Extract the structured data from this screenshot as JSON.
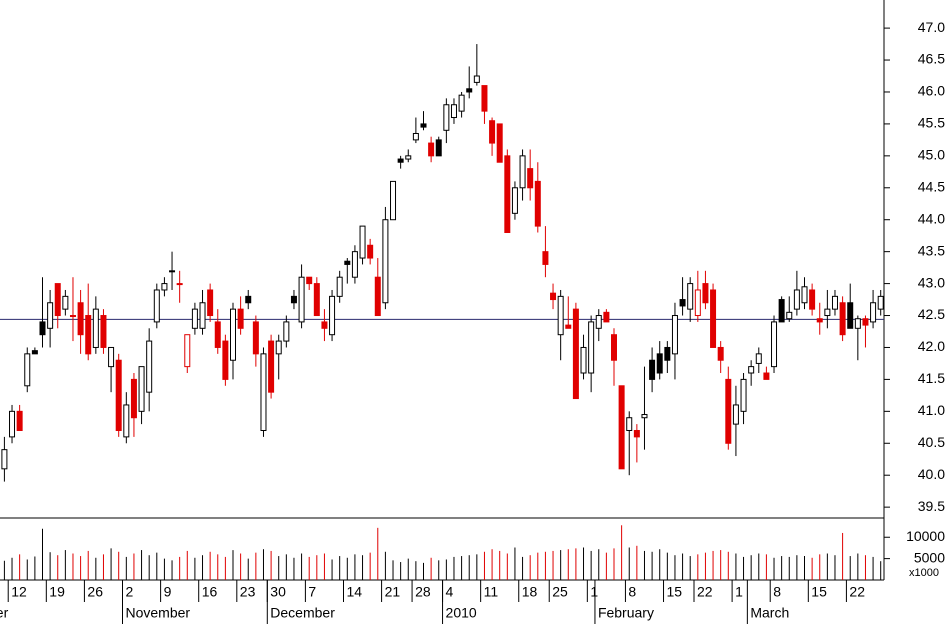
{
  "chart_data": {
    "type": "candlestick",
    "ohlc": [
      [
        40.1,
        40.6,
        39.9,
        40.4
      ],
      [
        40.6,
        41.1,
        40.5,
        41.0
      ],
      [
        41.0,
        41.1,
        40.7,
        40.7
      ],
      [
        41.4,
        42.0,
        41.3,
        41.9
      ],
      [
        41.95,
        42.0,
        41.9,
        41.9
      ],
      [
        42.4,
        43.1,
        42.0,
        42.2
      ],
      [
        42.3,
        42.9,
        42.0,
        42.7
      ],
      [
        43.0,
        43.0,
        42.3,
        42.5
      ],
      [
        42.6,
        42.9,
        42.5,
        42.8
      ],
      [
        42.5,
        43.1,
        42.1,
        42.5
      ],
      [
        42.7,
        42.9,
        41.9,
        42.2
      ],
      [
        42.5,
        43.0,
        41.8,
        41.9
      ],
      [
        42.0,
        42.8,
        41.9,
        42.6
      ],
      [
        42.5,
        42.6,
        41.9,
        42.0
      ],
      [
        41.7,
        42.0,
        41.3,
        42.0
      ],
      [
        41.8,
        41.9,
        40.6,
        40.7
      ],
      [
        40.6,
        41.3,
        40.5,
        41.1
      ],
      [
        41.5,
        41.6,
        40.6,
        40.9
      ],
      [
        41.0,
        41.7,
        40.8,
        41.7
      ],
      [
        41.3,
        42.3,
        41.0,
        42.1
      ],
      [
        42.4,
        43.0,
        42.3,
        42.9
      ],
      [
        42.9,
        43.1,
        42.8,
        43.0
      ],
      [
        43.2,
        43.5,
        42.9,
        43.2
      ],
      [
        43.0,
        43.2,
        42.7,
        43.0
      ],
      [
        41.7,
        42.2,
        41.6,
        42.2
      ],
      [
        42.3,
        42.7,
        42.2,
        42.6
      ],
      [
        42.3,
        42.9,
        42.2,
        42.7
      ],
      [
        42.9,
        43.0,
        42.4,
        42.5
      ],
      [
        42.4,
        42.6,
        41.9,
        42.0
      ],
      [
        42.1,
        42.2,
        41.4,
        41.5
      ],
      [
        41.8,
        42.7,
        41.5,
        42.6
      ],
      [
        42.6,
        42.8,
        42.2,
        42.3
      ],
      [
        42.8,
        42.9,
        42.6,
        42.7
      ],
      [
        42.4,
        42.5,
        41.7,
        41.9
      ],
      [
        40.7,
        42.0,
        40.6,
        41.9
      ],
      [
        42.1,
        42.2,
        41.2,
        41.3
      ],
      [
        41.9,
        42.2,
        41.5,
        42.1
      ],
      [
        42.1,
        42.5,
        42.0,
        42.4
      ],
      [
        42.8,
        42.9,
        42.6,
        42.7
      ],
      [
        42.4,
        43.3,
        42.3,
        43.1
      ],
      [
        43.1,
        43.1,
        42.9,
        43.0
      ],
      [
        43.0,
        43.1,
        42.5,
        42.5
      ],
      [
        42.4,
        42.6,
        42.1,
        42.3
      ],
      [
        42.2,
        42.9,
        42.1,
        42.8
      ],
      [
        42.8,
        43.2,
        42.7,
        43.1
      ],
      [
        43.35,
        43.4,
        43.0,
        43.3
      ],
      [
        43.1,
        43.6,
        43.0,
        43.5
      ],
      [
        43.4,
        43.9,
        43.3,
        43.9
      ],
      [
        43.6,
        43.7,
        43.3,
        43.4
      ],
      [
        43.1,
        43.4,
        42.5,
        42.5
      ],
      [
        42.7,
        44.2,
        42.6,
        44.0
      ],
      [
        44.0,
        44.6,
        44.0,
        44.6
      ],
      [
        44.95,
        45.0,
        44.8,
        44.9
      ],
      [
        44.95,
        45.1,
        44.9,
        45.0
      ],
      [
        45.25,
        45.6,
        45.2,
        45.35
      ],
      [
        45.5,
        45.7,
        45.4,
        45.45
      ],
      [
        45.2,
        45.3,
        44.9,
        45.0
      ],
      [
        45.25,
        45.3,
        45.0,
        45.0
      ],
      [
        45.4,
        45.9,
        45.2,
        45.8
      ],
      [
        45.6,
        45.9,
        45.5,
        45.8
      ],
      [
        45.7,
        46.0,
        45.6,
        45.95
      ],
      [
        46.05,
        46.4,
        45.9,
        46.0
      ],
      [
        46.15,
        46.75,
        46.1,
        46.25
      ],
      [
        46.1,
        46.1,
        45.5,
        45.7
      ],
      [
        45.55,
        45.6,
        45.0,
        45.2
      ],
      [
        45.5,
        45.5,
        44.9,
        44.9
      ],
      [
        45.0,
        45.1,
        43.8,
        43.8
      ],
      [
        44.1,
        44.6,
        44.0,
        44.5
      ],
      [
        44.5,
        45.1,
        44.3,
        45.0
      ],
      [
        44.8,
        45.1,
        44.3,
        44.5
      ],
      [
        44.6,
        44.9,
        43.8,
        43.9
      ],
      [
        43.5,
        43.9,
        43.1,
        43.3
      ],
      [
        42.85,
        43.0,
        42.6,
        42.75
      ],
      [
        42.2,
        42.9,
        41.8,
        42.8
      ],
      [
        42.35,
        42.8,
        42.3,
        42.3
      ],
      [
        42.6,
        42.7,
        41.2,
        41.2
      ],
      [
        41.6,
        42.2,
        41.5,
        42.0
      ],
      [
        41.6,
        42.5,
        41.3,
        42.4
      ],
      [
        42.3,
        42.6,
        42.1,
        42.5
      ],
      [
        42.55,
        42.6,
        42.4,
        42.4
      ],
      [
        42.2,
        42.3,
        41.4,
        41.8
      ],
      [
        41.4,
        41.4,
        40.1,
        40.1
      ],
      [
        40.7,
        41.0,
        40.0,
        40.9
      ],
      [
        40.7,
        40.8,
        40.2,
        40.6
      ],
      [
        40.9,
        41.7,
        40.4,
        40.95
      ],
      [
        41.8,
        42.0,
        41.3,
        41.5
      ],
      [
        41.9,
        42.1,
        41.5,
        41.6
      ],
      [
        42.0,
        42.1,
        41.6,
        41.8
      ],
      [
        41.9,
        42.7,
        41.5,
        42.5
      ],
      [
        42.75,
        43.1,
        42.5,
        42.65
      ],
      [
        42.6,
        43.1,
        42.4,
        43.0
      ],
      [
        42.5,
        43.2,
        42.4,
        42.9
      ],
      [
        43.0,
        43.2,
        42.6,
        42.7
      ],
      [
        42.9,
        43.0,
        42.0,
        42.0
      ],
      [
        42.0,
        42.1,
        41.6,
        41.8
      ],
      [
        41.5,
        41.7,
        40.4,
        40.5
      ],
      [
        40.8,
        41.4,
        40.3,
        41.1
      ],
      [
        41.0,
        41.6,
        40.8,
        41.5
      ],
      [
        41.6,
        41.8,
        41.4,
        41.7
      ],
      [
        41.75,
        42.0,
        41.6,
        41.9
      ],
      [
        41.6,
        41.7,
        41.5,
        41.5
      ],
      [
        41.7,
        42.5,
        41.6,
        42.4
      ],
      [
        42.75,
        42.8,
        42.4,
        42.4
      ],
      [
        42.45,
        42.8,
        42.4,
        42.55
      ],
      [
        42.6,
        43.2,
        42.5,
        42.9
      ],
      [
        42.7,
        43.1,
        42.6,
        42.95
      ],
      [
        42.9,
        43.0,
        42.5,
        42.6
      ],
      [
        42.45,
        42.7,
        42.2,
        42.4
      ],
      [
        42.5,
        42.9,
        42.3,
        42.6
      ],
      [
        42.6,
        42.9,
        42.5,
        42.8
      ],
      [
        42.7,
        42.8,
        42.1,
        42.2
      ],
      [
        42.7,
        43.0,
        42.3,
        42.3
      ],
      [
        42.3,
        42.5,
        41.8,
        42.45
      ],
      [
        42.45,
        42.5,
        42.0,
        42.35
      ],
      [
        42.4,
        42.9,
        42.3,
        42.7
      ],
      [
        42.6,
        42.9,
        42.5,
        42.8
      ]
    ],
    "categories": [
      null,
      "12",
      null,
      null,
      null,
      null,
      "19",
      null,
      null,
      null,
      null,
      "26",
      null,
      null,
      null,
      null,
      "2",
      null,
      null,
      null,
      null,
      "9",
      null,
      null,
      null,
      null,
      "16",
      null,
      null,
      null,
      null,
      "23",
      null,
      null,
      null,
      "30",
      null,
      null,
      null,
      null,
      "7",
      null,
      null,
      null,
      null,
      "14",
      null,
      null,
      null,
      null,
      "21",
      null,
      null,
      null,
      "28",
      null,
      null,
      null,
      "4",
      null,
      null,
      null,
      null,
      "11",
      null,
      null,
      null,
      null,
      "18",
      null,
      null,
      null,
      "25",
      null,
      null,
      null,
      null,
      "1",
      null,
      null,
      null,
      null,
      "8",
      null,
      null,
      null,
      null,
      "15",
      null,
      null,
      null,
      "22",
      null,
      null,
      null,
      null,
      "1",
      null,
      null,
      null,
      null,
      "8",
      null,
      null,
      null,
      null,
      "15",
      null,
      null,
      null,
      null,
      "22",
      null,
      null,
      null,
      null
    ],
    "month_categories": [
      "ber",
      null,
      null,
      null,
      null,
      null,
      null,
      null,
      null,
      null,
      null,
      null,
      null,
      null,
      null,
      null,
      "November",
      null,
      null,
      null,
      null,
      null,
      null,
      null,
      null,
      null,
      null,
      null,
      null,
      null,
      null,
      null,
      null,
      null,
      null,
      "December",
      null,
      null,
      null,
      null,
      null,
      null,
      null,
      null,
      null,
      null,
      null,
      null,
      null,
      null,
      null,
      null,
      null,
      null,
      null,
      null,
      null,
      null,
      "2010",
      null,
      null,
      null,
      null,
      null,
      null,
      null,
      null,
      null,
      null,
      null,
      null,
      null,
      null,
      null,
      null,
      null,
      null,
      null,
      "February",
      null,
      null,
      null,
      null,
      null,
      null,
      null,
      null,
      null,
      null,
      null,
      null,
      null,
      null,
      null,
      null,
      null,
      null,
      null,
      "March",
      null,
      null,
      null,
      null,
      null,
      null,
      null,
      null,
      null,
      null,
      null,
      null,
      null,
      null,
      null,
      null,
      null,
      null,
      null
    ],
    "ylim": [
      39.33,
      47.44
    ],
    "yticks": [
      39.5,
      {
        "value": 40,
        "label": "40.0"
      },
      40.5,
      {
        "value": 41,
        "label": "41.0"
      },
      41.5,
      {
        "value": 42,
        "label": "42.0"
      },
      42.5,
      {
        "value": 43,
        "label": "43.0"
      },
      43.5,
      {
        "value": 44,
        "label": "44.0"
      },
      44.5,
      {
        "value": 45,
        "label": "45.0"
      },
      45.5,
      {
        "value": 46,
        "label": "46.0"
      },
      46.5,
      {
        "value": 47,
        "label": "47.0"
      }
    ],
    "reference_line": 42.44,
    "up_color": "#000000",
    "down_color": "#e00000",
    "volume": {
      "values": [
        4500,
        5200,
        6000,
        4800,
        5500,
        12000,
        6500,
        5800,
        7000,
        6200,
        5600,
        6800,
        5200,
        6000,
        7400,
        6600,
        5400,
        6200,
        7000,
        5800,
        6400,
        5000,
        4600,
        5400,
        6800,
        5200,
        5800,
        6600,
        6000,
        5400,
        7000,
        6200,
        5000,
        6400,
        7200,
        6800,
        5600,
        6000,
        5200,
        6200,
        5400,
        5800,
        6200,
        4800,
        5600,
        5200,
        6000,
        5800,
        6400,
        12200,
        6600,
        4600,
        4200,
        5000,
        4400,
        4000,
        5200,
        4600,
        4800,
        5400,
        5600,
        5800,
        6000,
        6600,
        7200,
        6800,
        6200,
        7600,
        5400,
        5800,
        6400,
        6600,
        6800,
        7000,
        7200,
        7400,
        7600,
        6800,
        7200,
        6400,
        7400,
        12800,
        7600,
        8000,
        6800,
        6600,
        7200,
        6400,
        5800,
        6200,
        5600,
        6000,
        6400,
        6800,
        7000,
        6600,
        6200,
        5400,
        5800,
        6200,
        6000,
        5200,
        5600,
        5400,
        5800,
        5600,
        5200,
        6000,
        6200,
        5800,
        11000,
        5600,
        6200,
        5800,
        5400,
        4400
      ],
      "ylim": [
        0,
        14500
      ],
      "yticks": [
        5000,
        10000
      ],
      "unit_label": "x1000"
    }
  }
}
